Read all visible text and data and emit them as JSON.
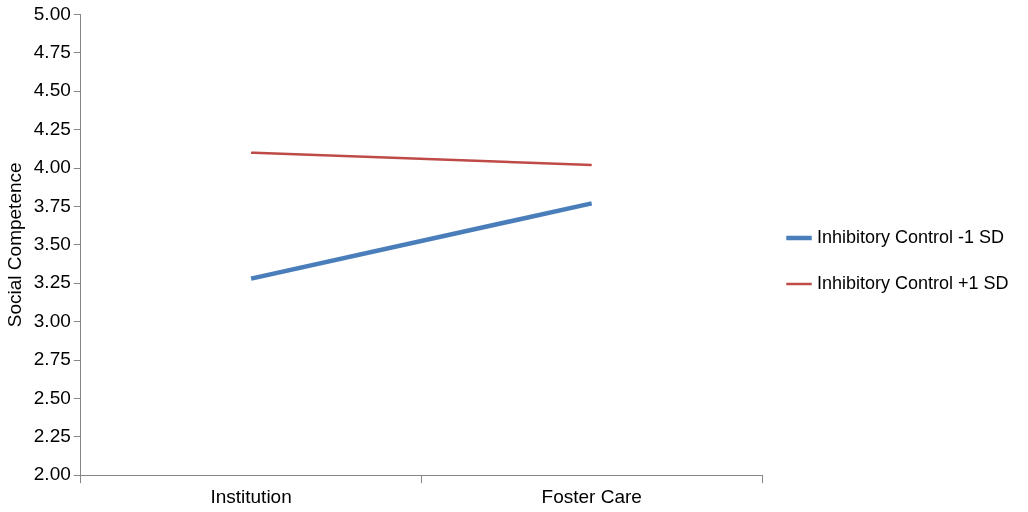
{
  "chart_data": {
    "type": "line",
    "ylabel": "Social Competence",
    "categories": [
      "Institution",
      "Foster Care"
    ],
    "series": [
      {
        "name": "Inhibitory Control -1 SD",
        "color": "#4a7ebb",
        "values": [
          3.28,
          3.77
        ]
      },
      {
        "name": "Inhibitory Control +1 SD",
        "color": "#be4b48",
        "values": [
          4.1,
          4.02
        ]
      }
    ],
    "ylim": [
      2,
      5
    ],
    "yticks": [
      {
        "value": 2,
        "label": "2.00"
      },
      {
        "value": 2.25,
        "label": "2.25"
      },
      {
        "value": 2.5,
        "label": "2.50"
      },
      {
        "value": 2.75,
        "label": "2.75"
      },
      {
        "value": 3,
        "label": "3.00"
      },
      {
        "value": 3.25,
        "label": "3.25"
      },
      {
        "value": 3.5,
        "label": "3.50"
      },
      {
        "value": 3.75,
        "label": "3.75"
      },
      {
        "value": 4,
        "label": "4.00"
      },
      {
        "value": 4.25,
        "label": "4.25"
      },
      {
        "value": 4.5,
        "label": "4.50"
      },
      {
        "value": 4.75,
        "label": "4.75"
      },
      {
        "value": 5,
        "label": "5.00"
      }
    ],
    "grid": false,
    "legend": "right",
    "marker": "none",
    "line_style": "solid"
  }
}
